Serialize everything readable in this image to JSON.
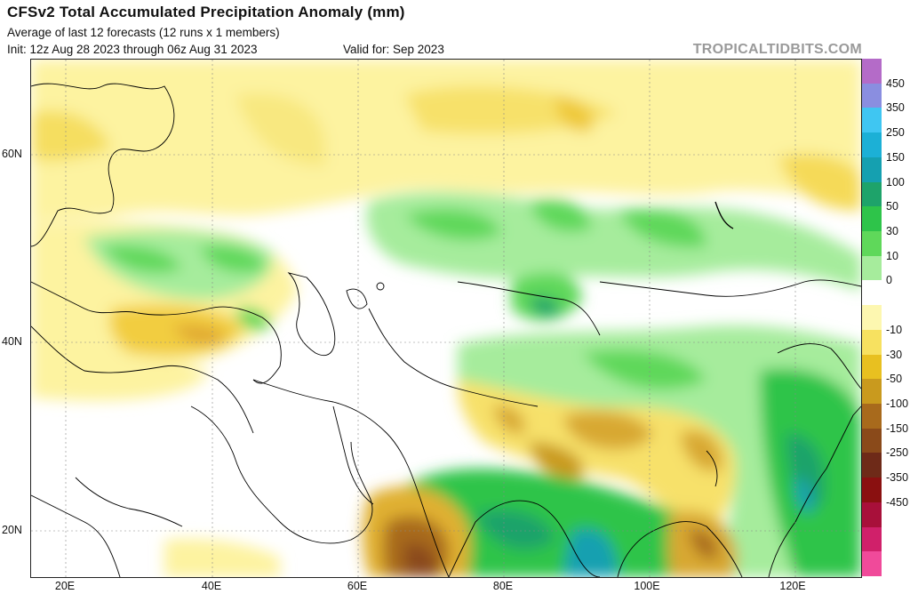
{
  "header": {
    "title": "CFSv2 Total Accumulated Precipitation Anomaly (mm)",
    "subtitle": "Average of last 12 forecasts (12 runs x 1 members)",
    "init": "Init: 12z Aug 28 2023 through 06z Aug 31 2023",
    "valid": "Valid for: Sep 2023",
    "brand": "TROPICALTIDBITS.COM"
  },
  "map": {
    "lat_labels": [
      "60N",
      "40N",
      "20N"
    ],
    "lon_labels": [
      "20E",
      "40E",
      "60E",
      "80E",
      "100E",
      "120E"
    ]
  },
  "colorbar": {
    "labels": [
      "450",
      "350",
      "250",
      "150",
      "100",
      "50",
      "30",
      "10",
      "0",
      "-10",
      "-30",
      "-50",
      "-100",
      "-150",
      "-250",
      "-350",
      "-450"
    ],
    "colors": [
      "#b46bc8",
      "#8a8ee0",
      "#3fc6f2",
      "#1cb0d6",
      "#15a0b0",
      "#1ea36a",
      "#2ec44a",
      "#5fd85a",
      "#a6ec9c",
      "#ffffff",
      "#fdf7b0",
      "#f7e160",
      "#e8c020",
      "#c99a1e",
      "#a86a1c",
      "#8a4a1a",
      "#6e2a18",
      "#8a1010",
      "#a8103a",
      "#d0206a",
      "#f04a9a"
    ]
  }
}
